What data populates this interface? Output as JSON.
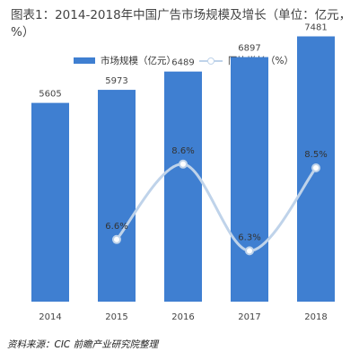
{
  "title": "图表1：2014-2018年中国广告市场规模及增长（单位：亿元，%）",
  "source": "资料来源：CIC 前瞻产业研究院整理",
  "colors": {
    "bar": "#3F7FD1",
    "line": "#BFD3EA",
    "label": "#444444",
    "rate_label": "#333333"
  },
  "chart_data": {
    "type": "bar",
    "title": "图表1：2014-2018年中国广告市场规模及增长（单位：亿元，%）",
    "categories": [
      "2014",
      "2015",
      "2016",
      "2017",
      "2018"
    ],
    "ylim": [
      0,
      8000
    ],
    "grid": false,
    "legend_position": "top",
    "series": [
      {
        "name": "市场规模（亿元）",
        "type": "bar",
        "values": [
          5605,
          5973,
          6489,
          6897,
          7481
        ]
      },
      {
        "name": "同比增长（%）",
        "type": "line",
        "values": [
          null,
          6.6,
          8.6,
          6.3,
          8.5
        ],
        "labels": [
          "",
          "6.6%",
          "8.6%",
          "6.3%",
          "8.5%"
        ]
      }
    ]
  }
}
